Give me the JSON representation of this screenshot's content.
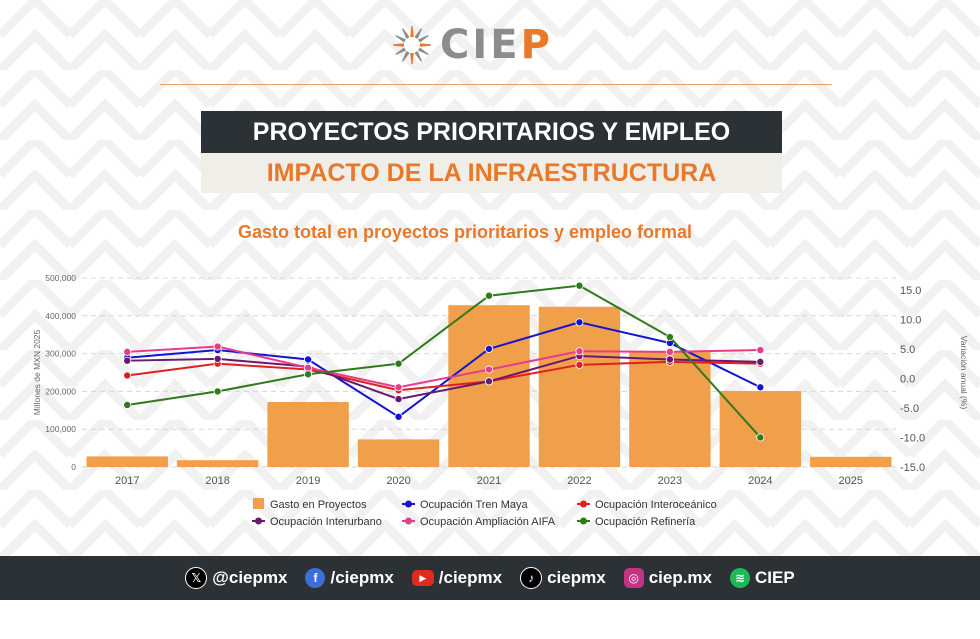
{
  "logo": {
    "part1": "CIE",
    "part2": "P"
  },
  "header": {
    "title": "PROYECTOS PRIORITARIOS Y EMPLEO",
    "subtitle": "IMPACTO DE LA INFRAESTRUCTURA"
  },
  "chart_title": "Gasto total en proyectos prioritarios y empleo formal",
  "colors": {
    "accent": "#e8782a",
    "dark": "#2b3135",
    "bar": "#f0a04a"
  },
  "chart_data": {
    "type": "bar",
    "categories": [
      "2017",
      "2018",
      "2019",
      "2020",
      "2021",
      "2022",
      "2023",
      "2024",
      "2025"
    ],
    "ylabel": "Millones de MXN 2025",
    "y2label": "Variación anual (%)",
    "ylim": [
      0,
      500000
    ],
    "y2lim": [
      -15,
      17
    ],
    "yticks": [
      "0",
      "100,000",
      "200,000",
      "300,000",
      "400,000",
      "500,000"
    ],
    "y2ticks": [
      "-15.0",
      "-10.0",
      "-5.0",
      "0.0",
      "5.0",
      "10.0",
      "15.0"
    ],
    "grid": true,
    "legend_position": "bottom",
    "bars": {
      "name": "Gasto en Proyectos",
      "color": "#f0a04a",
      "values": [
        28000,
        18000,
        172000,
        73000,
        428000,
        424000,
        305000,
        201000,
        27000
      ]
    },
    "series": [
      {
        "name": "Ocupación Tren Maya",
        "color": "#1414d2",
        "values": [
          3.5,
          4.8,
          3.2,
          -6.5,
          5.0,
          9.5,
          6.0,
          -1.5,
          null
        ]
      },
      {
        "name": "Ocupación Interoceánico",
        "color": "#e02020",
        "values": [
          0.5,
          2.5,
          1.5,
          -2.0,
          -0.5,
          2.3,
          2.8,
          2.5,
          null
        ]
      },
      {
        "name": "Ocupación Interurbano",
        "color": "#6a1a6e",
        "values": [
          3.0,
          3.3,
          2.0,
          -3.5,
          -0.5,
          3.8,
          3.2,
          2.8,
          null
        ]
      },
      {
        "name": "Ocupación Ampliación AIFA",
        "color": "#e83c8a",
        "values": [
          4.5,
          5.4,
          1.8,
          -1.5,
          1.5,
          4.6,
          4.5,
          4.8,
          null
        ]
      },
      {
        "name": "Ocupación Refinería",
        "color": "#2f7a1a",
        "values": [
          -4.5,
          -2.2,
          0.7,
          2.5,
          14.0,
          15.7,
          7.0,
          -10.0,
          null
        ]
      }
    ]
  },
  "footer": {
    "items": [
      {
        "icon": "x-icon",
        "label": "@ciepmx"
      },
      {
        "icon": "facebook-icon",
        "label": "/ciepmx"
      },
      {
        "icon": "youtube-icon",
        "label": "/ciepmx"
      },
      {
        "icon": "tiktok-icon",
        "label": "ciepmx"
      },
      {
        "icon": "instagram-icon",
        "label": "ciep.mx"
      },
      {
        "icon": "spotify-icon",
        "label": "CIEP"
      }
    ]
  }
}
